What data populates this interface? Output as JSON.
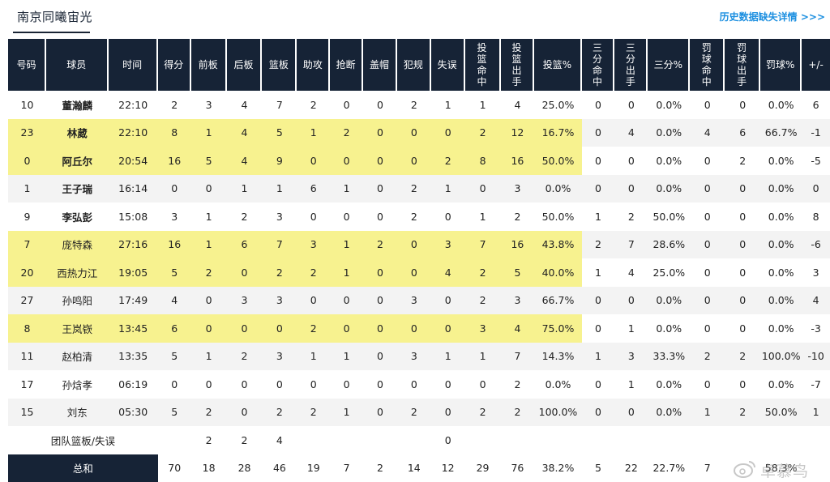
{
  "header": {
    "team_name": "南京同曦宙光",
    "history_link": "历史数据缺失详情 >>>"
  },
  "table": {
    "columns": [
      "号码",
      "球员",
      "时间",
      "得分",
      "前板",
      "后板",
      "篮板",
      "助攻",
      "抢断",
      "盖帽",
      "犯规",
      "失误",
      "投\n篮\n命\n中",
      "投\n篮\n出\n手",
      "投篮%",
      "三\n分\n命\n中",
      "三\n分\n出\n手",
      "三分%",
      "罚\n球\n命\n中",
      "罚\n球\n出\n手",
      "罚球%",
      "+/-"
    ],
    "rows": [
      {
        "cells": [
          "10",
          "董瀚麟",
          "22:10",
          "2",
          "3",
          "4",
          "7",
          "2",
          "0",
          "0",
          "2",
          "1",
          "1",
          "4",
          "25.0%",
          "0",
          "0",
          "0.0%",
          "0",
          "0",
          "0.0%",
          "6"
        ],
        "bold_name": true,
        "highlight_cols": 0
      },
      {
        "cells": [
          "23",
          "林葳",
          "22:10",
          "8",
          "1",
          "4",
          "5",
          "1",
          "2",
          "0",
          "0",
          "0",
          "2",
          "12",
          "16.7%",
          "0",
          "4",
          "0.0%",
          "4",
          "6",
          "66.7%",
          "-1"
        ],
        "bold_name": true,
        "highlight_cols": 15
      },
      {
        "cells": [
          "0",
          "阿丘尔",
          "20:54",
          "16",
          "5",
          "4",
          "9",
          "0",
          "0",
          "0",
          "0",
          "2",
          "8",
          "16",
          "50.0%",
          "0",
          "0",
          "0.0%",
          "0",
          "2",
          "0.0%",
          "-5"
        ],
        "bold_name": true,
        "highlight_cols": 15
      },
      {
        "cells": [
          "1",
          "王子瑞",
          "16:14",
          "0",
          "0",
          "1",
          "1",
          "6",
          "1",
          "0",
          "2",
          "1",
          "0",
          "3",
          "0.0%",
          "0",
          "0",
          "0.0%",
          "0",
          "0",
          "0.0%",
          "0"
        ],
        "bold_name": true,
        "highlight_cols": 0
      },
      {
        "cells": [
          "9",
          "李弘彭",
          "15:08",
          "3",
          "1",
          "2",
          "3",
          "0",
          "0",
          "0",
          "2",
          "0",
          "1",
          "2",
          "50.0%",
          "1",
          "2",
          "50.0%",
          "0",
          "0",
          "0.0%",
          "8"
        ],
        "bold_name": true,
        "highlight_cols": 0
      },
      {
        "cells": [
          "7",
          "庞特森",
          "27:16",
          "16",
          "1",
          "6",
          "7",
          "3",
          "1",
          "2",
          "0",
          "3",
          "7",
          "16",
          "43.8%",
          "2",
          "7",
          "28.6%",
          "0",
          "0",
          "0.0%",
          "-6"
        ],
        "bold_name": false,
        "highlight_cols": 15
      },
      {
        "cells": [
          "20",
          "西热力江",
          "19:05",
          "5",
          "2",
          "0",
          "2",
          "2",
          "1",
          "0",
          "0",
          "4",
          "2",
          "5",
          "40.0%",
          "1",
          "4",
          "25.0%",
          "0",
          "0",
          "0.0%",
          "3"
        ],
        "bold_name": false,
        "highlight_cols": 15
      },
      {
        "cells": [
          "27",
          "孙鸣阳",
          "17:49",
          "4",
          "0",
          "3",
          "3",
          "0",
          "0",
          "0",
          "3",
          "0",
          "2",
          "3",
          "66.7%",
          "0",
          "0",
          "0.0%",
          "0",
          "0",
          "0.0%",
          "4"
        ],
        "bold_name": false,
        "highlight_cols": 0
      },
      {
        "cells": [
          "8",
          "王岚嵚",
          "13:45",
          "6",
          "0",
          "0",
          "0",
          "2",
          "0",
          "0",
          "0",
          "0",
          "3",
          "4",
          "75.0%",
          "0",
          "1",
          "0.0%",
          "0",
          "0",
          "0.0%",
          "-3"
        ],
        "bold_name": false,
        "highlight_cols": 15
      },
      {
        "cells": [
          "11",
          "赵柏清",
          "13:35",
          "5",
          "1",
          "2",
          "3",
          "1",
          "1",
          "0",
          "3",
          "1",
          "1",
          "7",
          "14.3%",
          "1",
          "3",
          "33.3%",
          "2",
          "2",
          "100.0%",
          "-10"
        ],
        "bold_name": false,
        "highlight_cols": 0
      },
      {
        "cells": [
          "17",
          "孙焓孝",
          "06:19",
          "0",
          "0",
          "0",
          "0",
          "0",
          "0",
          "0",
          "0",
          "0",
          "0",
          "2",
          "0.0%",
          "0",
          "1",
          "0.0%",
          "0",
          "0",
          "0.0%",
          "-7"
        ],
        "bold_name": false,
        "highlight_cols": 0
      },
      {
        "cells": [
          "15",
          "刘东",
          "05:30",
          "5",
          "2",
          "0",
          "2",
          "2",
          "1",
          "0",
          "2",
          "0",
          "2",
          "2",
          "100.0%",
          "0",
          "0",
          "0.0%",
          "1",
          "2",
          "50.0%",
          "1"
        ],
        "bold_name": false,
        "highlight_cols": 0
      }
    ],
    "team_row": {
      "label": "团队篮板/失误",
      "cells": [
        "",
        "",
        "",
        "",
        "2",
        "2",
        "4",
        "",
        "",
        "",
        "",
        "0",
        "",
        "",
        "",
        "",
        "",
        "",
        "",
        "",
        "",
        ""
      ]
    },
    "total_row": {
      "label": "总和",
      "cells": [
        "",
        "",
        "",
        "70",
        "18",
        "28",
        "46",
        "19",
        "7",
        "2",
        "14",
        "12",
        "29",
        "76",
        "38.2%",
        "5",
        "22",
        "22.7%",
        "7",
        "",
        "58.3%",
        ""
      ]
    }
  },
  "watermark": {
    "text": "卓慕鸟"
  },
  "colors": {
    "header_bg": "#162336",
    "highlight": "#f7f28f",
    "link": "#1c8fe0",
    "row_alt": "#f3f3f3"
  }
}
